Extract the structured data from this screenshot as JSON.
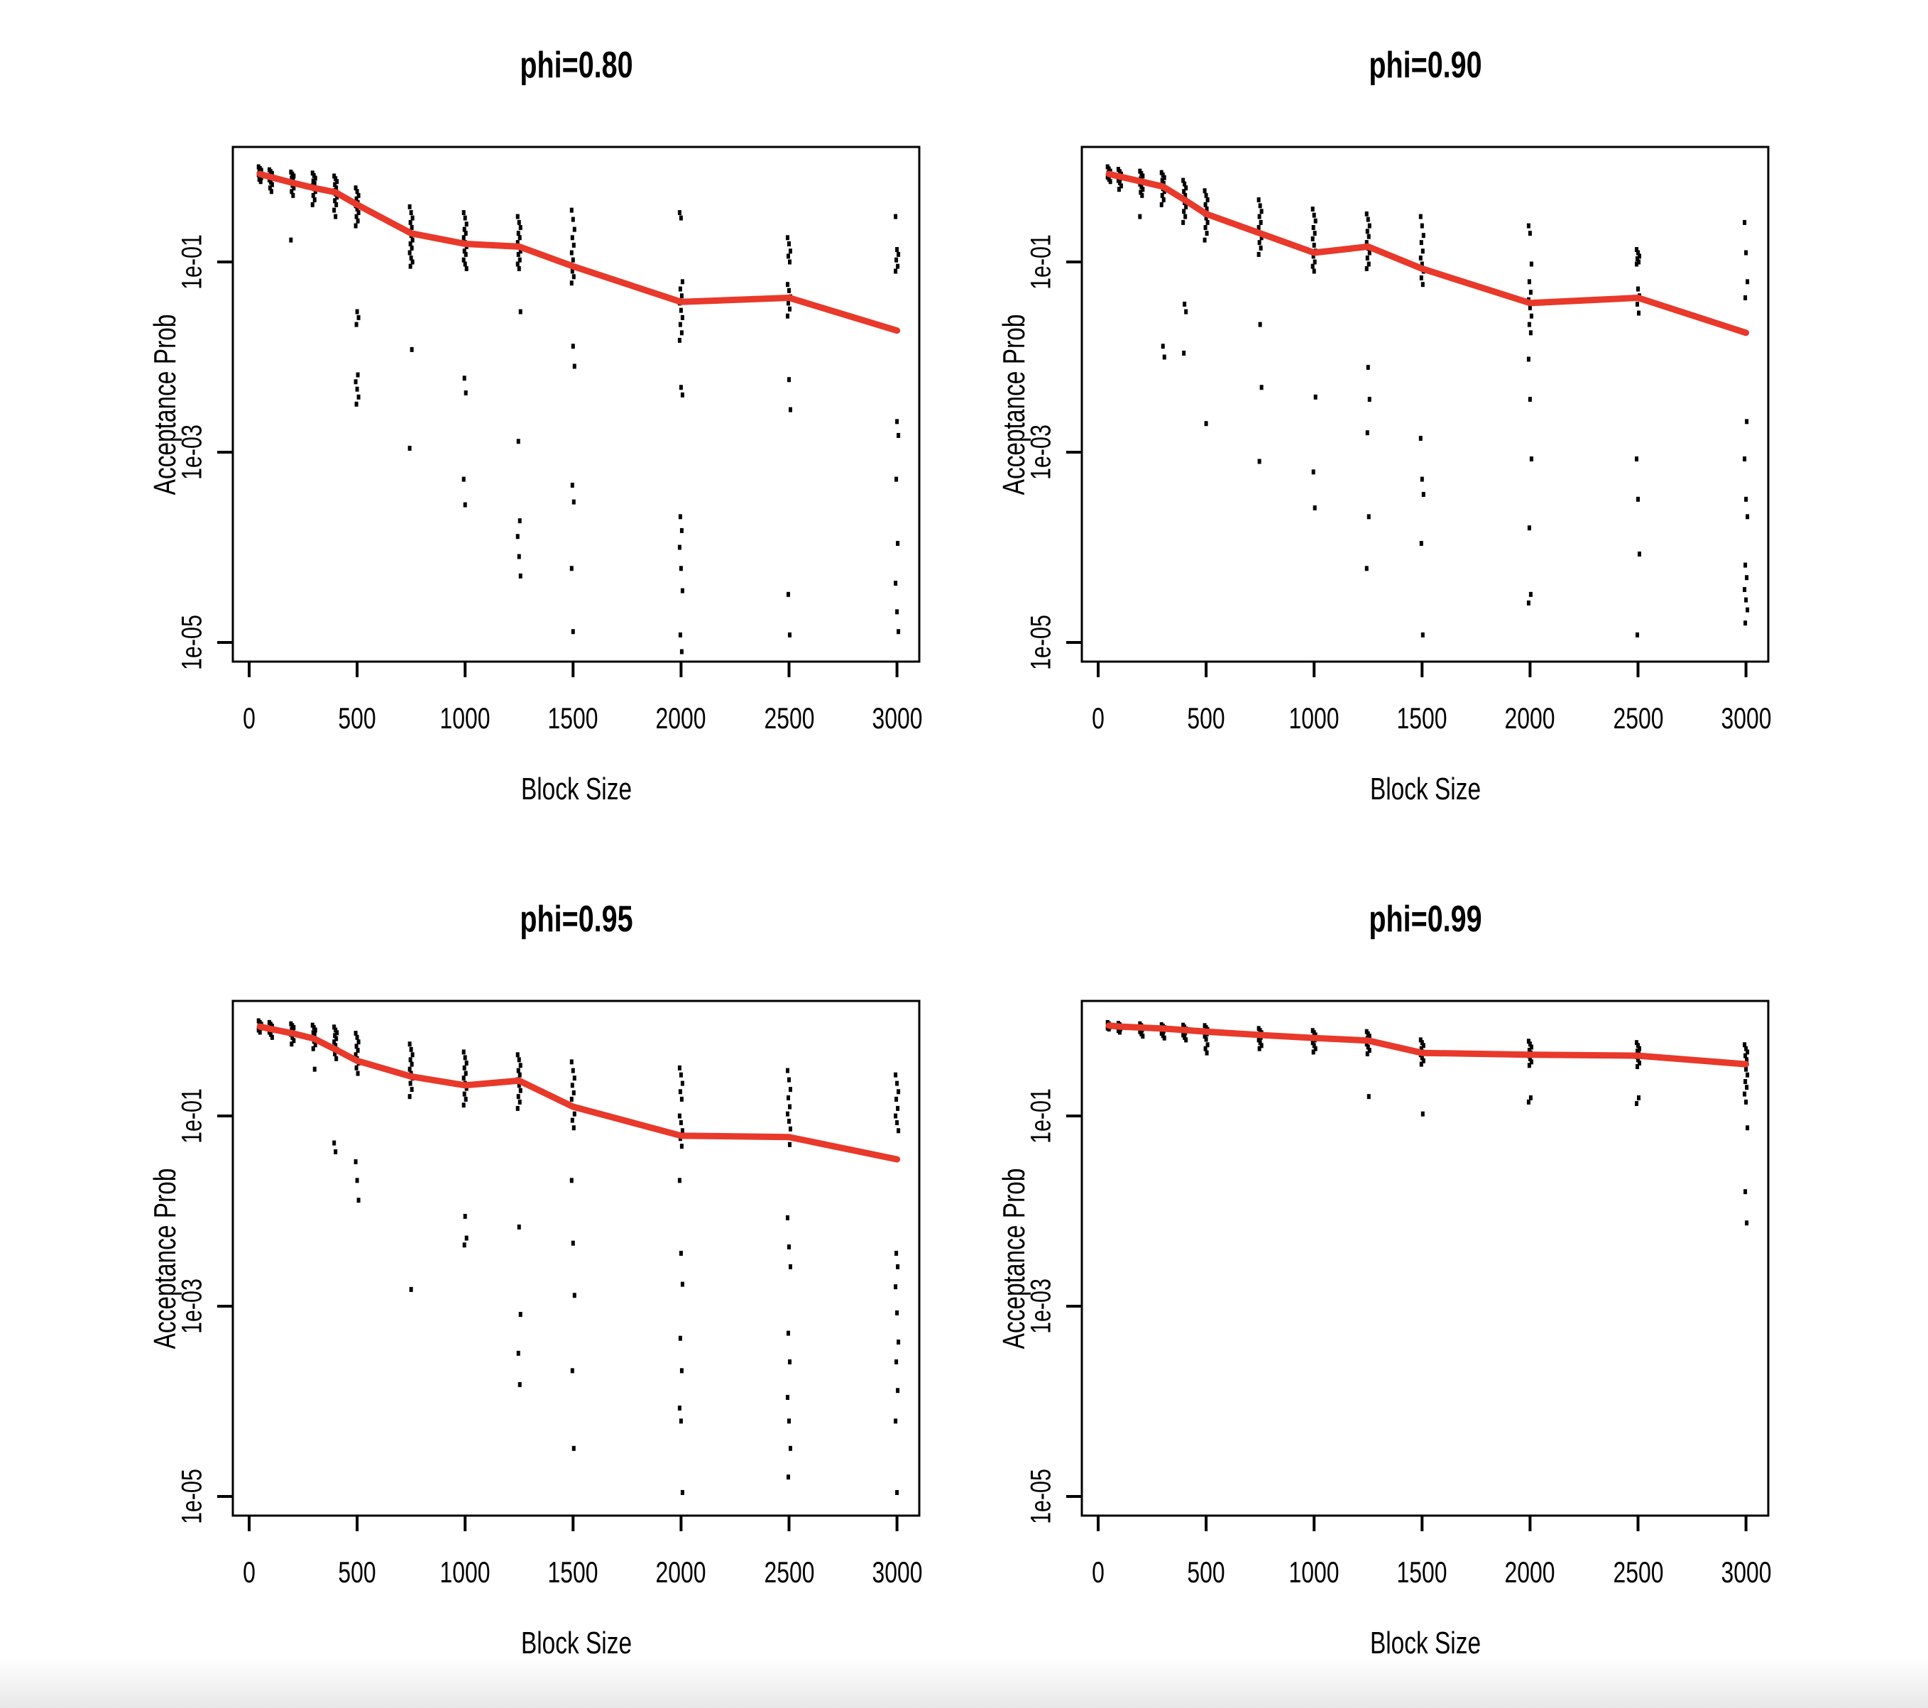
{
  "figure": {
    "background_color": "#ffffff",
    "line_color": "#e8392b",
    "point_color": "#000000",
    "text_color": "#000000"
  },
  "chart_data": [
    {
      "type": "scatter",
      "title": "phi=0.80",
      "xlabel": "Block Size",
      "ylabel": "Acceptance Prob",
      "x_ticks": [
        0,
        500,
        1000,
        1500,
        2000,
        2500,
        3000
      ],
      "y_tick_labels": [
        "1e-01",
        "1e-03",
        "1e-05"
      ],
      "y_tick_values": [
        0.1,
        0.001,
        1e-05
      ],
      "xlim": [
        0,
        3000
      ],
      "ylim_log": [
        6.3e-06,
        1.6
      ],
      "block_sizes": [
        50,
        100,
        200,
        300,
        400,
        500,
        750,
        1000,
        1250,
        1500,
        2000,
        2500,
        3000
      ],
      "median_line": [
        0.84,
        0.78,
        0.68,
        0.6,
        0.54,
        0.4,
        0.2,
        0.155,
        0.145,
        0.09,
        0.038,
        0.042,
        0.019
      ],
      "points": {
        "50": [
          1.0,
          0.96,
          0.92,
          0.89,
          0.86,
          0.83,
          0.8,
          0.77,
          0.74,
          0.7
        ],
        "100": [
          0.93,
          0.89,
          0.85,
          0.81,
          0.77,
          0.73,
          0.69,
          0.65,
          0.6,
          0.55
        ],
        "200": [
          0.88,
          0.84,
          0.8,
          0.76,
          0.72,
          0.68,
          0.64,
          0.6,
          0.55,
          0.5,
          0.17
        ],
        "300": [
          0.86,
          0.81,
          0.76,
          0.71,
          0.67,
          0.63,
          0.59,
          0.55,
          0.5,
          0.45,
          0.4
        ],
        "400": [
          0.8,
          0.75,
          0.7,
          0.65,
          0.6,
          0.56,
          0.52,
          0.48,
          0.44,
          0.4,
          0.35,
          0.3
        ],
        "500": [
          0.6,
          0.55,
          0.5,
          0.46,
          0.42,
          0.39,
          0.36,
          0.33,
          0.3,
          0.27,
          0.24,
          0.03,
          0.026,
          0.022,
          0.0065,
          0.0055,
          0.0046,
          0.0038,
          0.0032
        ],
        "750": [
          0.38,
          0.33,
          0.29,
          0.26,
          0.23,
          0.21,
          0.19,
          0.17,
          0.155,
          0.14,
          0.125,
          0.11,
          0.1,
          0.09,
          0.012,
          0.0011
        ],
        "1000": [
          0.33,
          0.29,
          0.25,
          0.22,
          0.2,
          0.18,
          0.16,
          0.145,
          0.13,
          0.12,
          0.105,
          0.095,
          0.085,
          0.006,
          0.0042,
          0.00052,
          0.00028
        ],
        "1250": [
          0.3,
          0.26,
          0.23,
          0.2,
          0.18,
          0.16,
          0.145,
          0.13,
          0.12,
          0.105,
          0.095,
          0.085,
          0.03,
          0.0013,
          0.00019,
          0.00013,
          8e-05,
          5e-05
        ],
        "1500": [
          0.35,
          0.28,
          0.22,
          0.18,
          0.15,
          0.125,
          0.105,
          0.09,
          0.08,
          0.07,
          0.06,
          0.013,
          0.008,
          0.00045,
          0.0003,
          6e-05,
          1.3e-05
        ],
        "2000": [
          0.33,
          0.29,
          0.062,
          0.052,
          0.044,
          0.037,
          0.031,
          0.026,
          0.022,
          0.018,
          0.015,
          0.0048,
          0.004,
          0.00021,
          0.00015,
          0.0001,
          6e-05,
          3.5e-05,
          1.2e-05,
          8e-06
        ],
        "2500": [
          0.18,
          0.155,
          0.13,
          0.115,
          0.1,
          0.058,
          0.05,
          0.043,
          0.037,
          0.032,
          0.027,
          0.0058,
          0.0028,
          3.2e-05,
          1.2e-05
        ],
        "3000": [
          0.3,
          0.135,
          0.12,
          0.105,
          0.09,
          0.08,
          0.0021,
          0.0015,
          0.00052,
          0.00011,
          4.2e-05,
          2.1e-05,
          1.3e-05
        ]
      }
    },
    {
      "type": "scatter",
      "title": "phi=0.90",
      "xlabel": "Block Size",
      "ylabel": "Acceptance Prob",
      "x_ticks": [
        0,
        500,
        1000,
        1500,
        2000,
        2500,
        3000
      ],
      "y_tick_labels": [
        "1e-01",
        "1e-03",
        "1e-05"
      ],
      "y_tick_values": [
        0.1,
        0.001,
        1e-05
      ],
      "xlim": [
        0,
        3000
      ],
      "ylim_log": [
        6.3e-06,
        1.6
      ],
      "block_sizes": [
        50,
        100,
        200,
        300,
        400,
        500,
        750,
        1000,
        1250,
        1500,
        2000,
        2500,
        3000
      ],
      "median_line": [
        0.84,
        0.79,
        0.7,
        0.62,
        0.45,
        0.32,
        0.2,
        0.125,
        0.145,
        0.085,
        0.037,
        0.042,
        0.018
      ],
      "points": {
        "50": [
          1.0,
          0.95,
          0.9,
          0.86,
          0.82,
          0.78,
          0.74,
          0.7
        ],
        "100": [
          0.94,
          0.89,
          0.84,
          0.8,
          0.76,
          0.72,
          0.68,
          0.63,
          0.58
        ],
        "200": [
          0.9,
          0.85,
          0.8,
          0.75,
          0.7,
          0.66,
          0.62,
          0.58,
          0.54,
          0.5,
          0.3
        ],
        "300": [
          0.87,
          0.82,
          0.77,
          0.72,
          0.67,
          0.63,
          0.59,
          0.55,
          0.5,
          0.45,
          0.4,
          0.013,
          0.01
        ],
        "400": [
          0.72,
          0.66,
          0.6,
          0.55,
          0.5,
          0.46,
          0.42,
          0.38,
          0.34,
          0.3,
          0.26,
          0.036,
          0.03,
          0.011
        ],
        "500": [
          0.56,
          0.5,
          0.45,
          0.4,
          0.36,
          0.32,
          0.29,
          0.26,
          0.23,
          0.2,
          0.17,
          0.002
        ],
        "750": [
          0.45,
          0.39,
          0.34,
          0.3,
          0.26,
          0.23,
          0.2,
          0.18,
          0.16,
          0.14,
          0.12,
          0.022,
          0.0048,
          0.0008
        ],
        "1000": [
          0.36,
          0.31,
          0.27,
          0.23,
          0.2,
          0.175,
          0.15,
          0.13,
          0.115,
          0.1,
          0.09,
          0.08,
          0.0038,
          0.00062,
          0.00026
        ],
        "1250": [
          0.32,
          0.28,
          0.24,
          0.21,
          0.185,
          0.16,
          0.14,
          0.125,
          0.11,
          0.095,
          0.085,
          0.0078,
          0.0036,
          0.0016,
          0.00021,
          6e-05
        ],
        "1500": [
          0.3,
          0.24,
          0.19,
          0.16,
          0.13,
          0.11,
          0.095,
          0.08,
          0.068,
          0.058,
          0.0014,
          0.00052,
          0.00036,
          0.00011,
          1.2e-05
        ],
        "2000": [
          0.24,
          0.2,
          0.095,
          0.062,
          0.048,
          0.04,
          0.033,
          0.027,
          0.022,
          0.018,
          0.0095,
          0.0036,
          0.00085,
          0.00016,
          3.2e-05,
          2.6e-05
        ],
        "2500": [
          0.135,
          0.125,
          0.115,
          0.108,
          0.1,
          0.095,
          0.052,
          0.044,
          0.036,
          0.029,
          0.00085,
          0.00032,
          8.5e-05,
          1.2e-05
        ],
        "3000": [
          0.26,
          0.125,
          0.062,
          0.042,
          0.0021,
          0.00085,
          0.00032,
          0.00021,
          6.5e-05,
          4.8e-05,
          3.6e-05,
          2.8e-05,
          2.2e-05,
          1.6e-05
        ]
      }
    },
    {
      "type": "scatter",
      "title": "phi=0.95",
      "xlabel": "Block Size",
      "ylabel": "Acceptance Prob",
      "x_ticks": [
        0,
        500,
        1000,
        1500,
        2000,
        2500,
        3000
      ],
      "y_tick_labels": [
        "1e-01",
        "1e-03",
        "1e-05"
      ],
      "y_tick_values": [
        0.1,
        0.001,
        1e-05
      ],
      "xlim": [
        0,
        3000
      ],
      "ylim_log": [
        6.3e-06,
        1.6
      ],
      "block_sizes": [
        50,
        100,
        200,
        300,
        400,
        500,
        750,
        1000,
        1250,
        1500,
        2000,
        2500,
        3000
      ],
      "median_line": [
        0.87,
        0.82,
        0.74,
        0.65,
        0.5,
        0.38,
        0.26,
        0.21,
        0.235,
        0.125,
        0.062,
        0.06,
        0.035
      ],
      "points": {
        "50": [
          1.0,
          0.96,
          0.92,
          0.88,
          0.84,
          0.8,
          0.76
        ],
        "100": [
          0.96,
          0.92,
          0.88,
          0.84,
          0.8,
          0.76,
          0.72,
          0.67
        ],
        "200": [
          0.93,
          0.89,
          0.85,
          0.81,
          0.77,
          0.72,
          0.67,
          0.62,
          0.57
        ],
        "300": [
          0.9,
          0.85,
          0.8,
          0.75,
          0.71,
          0.66,
          0.61,
          0.56,
          0.51,
          0.31
        ],
        "400": [
          0.86,
          0.8,
          0.75,
          0.7,
          0.65,
          0.6,
          0.55,
          0.5,
          0.45,
          0.4,
          0.052,
          0.042
        ],
        "500": [
          0.74,
          0.67,
          0.6,
          0.54,
          0.49,
          0.44,
          0.4,
          0.36,
          0.32,
          0.28,
          0.033,
          0.021,
          0.013
        ],
        "750": [
          0.57,
          0.5,
          0.44,
          0.39,
          0.35,
          0.31,
          0.28,
          0.25,
          0.22,
          0.19,
          0.16,
          0.0015
        ],
        "1000": [
          0.47,
          0.41,
          0.36,
          0.32,
          0.28,
          0.25,
          0.22,
          0.195,
          0.17,
          0.15,
          0.13,
          0.0088,
          0.0052,
          0.0044
        ],
        "1250": [
          0.44,
          0.39,
          0.34,
          0.3,
          0.27,
          0.24,
          0.21,
          0.185,
          0.16,
          0.14,
          0.12,
          0.0068,
          0.00082,
          0.00032,
          0.00015
        ],
        "1500": [
          0.37,
          0.3,
          0.25,
          0.21,
          0.175,
          0.15,
          0.125,
          0.105,
          0.09,
          0.075,
          0.021,
          0.0046,
          0.0013,
          0.00021,
          3.2e-05
        ],
        "2000": [
          0.32,
          0.27,
          0.22,
          0.18,
          0.15,
          0.1,
          0.085,
          0.07,
          0.058,
          0.048,
          0.021,
          0.0036,
          0.0017,
          0.00046,
          0.00021,
          8.5e-05,
          6.2e-05,
          1.1e-05
        ],
        "2500": [
          0.3,
          0.24,
          0.19,
          0.155,
          0.125,
          0.105,
          0.088,
          0.073,
          0.06,
          0.05,
          0.0085,
          0.0042,
          0.0026,
          0.00052,
          0.00026,
          0.00011,
          6.2e-05,
          3.2e-05,
          1.6e-05
        ],
        "3000": [
          0.27,
          0.22,
          0.18,
          0.15,
          0.12,
          0.1,
          0.085,
          0.07,
          0.0036,
          0.0026,
          0.0016,
          0.00085,
          0.00042,
          0.00026,
          0.00013,
          6.2e-05,
          1.1e-05
        ]
      }
    },
    {
      "type": "scatter",
      "title": "phi=0.99",
      "xlabel": "Block Size",
      "ylabel": "Acceptance Prob",
      "x_ticks": [
        0,
        500,
        1000,
        1500,
        2000,
        2500,
        3000
      ],
      "y_tick_labels": [
        "1e-01",
        "1e-03",
        "1e-05"
      ],
      "y_tick_values": [
        0.1,
        0.001,
        1e-05
      ],
      "xlim": [
        0,
        3000
      ],
      "ylim_log": [
        6.3e-06,
        1.6
      ],
      "block_sizes": [
        50,
        100,
        200,
        300,
        400,
        500,
        750,
        1000,
        1250,
        1500,
        2000,
        2500,
        3000
      ],
      "median_line": [
        0.89,
        0.87,
        0.85,
        0.83,
        0.8,
        0.77,
        0.71,
        0.66,
        0.62,
        0.46,
        0.44,
        0.43,
        0.35
      ],
      "points": {
        "50": [
          0.96,
          0.93,
          0.9,
          0.88,
          0.86,
          0.84,
          0.82
        ],
        "100": [
          0.94,
          0.91,
          0.88,
          0.85,
          0.82,
          0.79,
          0.76
        ],
        "200": [
          0.93,
          0.89,
          0.86,
          0.83,
          0.8,
          0.77,
          0.73,
          0.69
        ],
        "300": [
          0.91,
          0.88,
          0.85,
          0.81,
          0.78,
          0.74,
          0.7,
          0.66
        ],
        "400": [
          0.9,
          0.86,
          0.82,
          0.79,
          0.75,
          0.71,
          0.67,
          0.63
        ],
        "500": [
          0.89,
          0.85,
          0.81,
          0.77,
          0.73,
          0.69,
          0.64,
          0.56,
          0.51,
          0.46
        ],
        "750": [
          0.83,
          0.79,
          0.75,
          0.71,
          0.67,
          0.63,
          0.59,
          0.55,
          0.51
        ],
        "1000": [
          0.79,
          0.75,
          0.71,
          0.67,
          0.63,
          0.59,
          0.55,
          0.51,
          0.47
        ],
        "1250": [
          0.77,
          0.73,
          0.69,
          0.65,
          0.61,
          0.57,
          0.53,
          0.49,
          0.45,
          0.16
        ],
        "1500": [
          0.63,
          0.59,
          0.55,
          0.51,
          0.47,
          0.44,
          0.41,
          0.38,
          0.35,
          0.105
        ],
        "2000": [
          0.61,
          0.57,
          0.53,
          0.49,
          0.46,
          0.43,
          0.4,
          0.37,
          0.34,
          0.155,
          0.14
        ],
        "2500": [
          0.59,
          0.55,
          0.51,
          0.48,
          0.45,
          0.42,
          0.39,
          0.36,
          0.33,
          0.155,
          0.135
        ],
        "3000": [
          0.56,
          0.51,
          0.47,
          0.43,
          0.39,
          0.35,
          0.31,
          0.27,
          0.23,
          0.2,
          0.17,
          0.14,
          0.075,
          0.016,
          0.0075
        ]
      }
    }
  ]
}
